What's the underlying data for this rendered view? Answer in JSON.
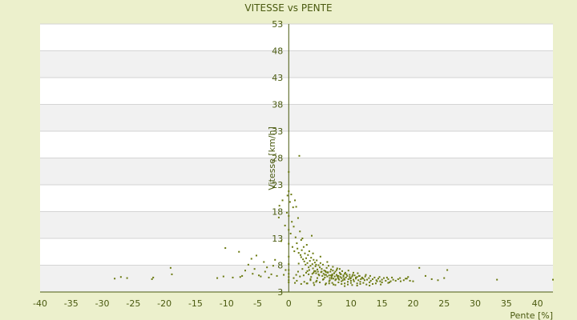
{
  "chart_data": {
    "type": "scatter",
    "title": "VITESSE vs PENTE",
    "xlabel": "Pente [%]",
    "ylabel": "Vitesse [km/h]",
    "xlim": [
      -40,
      42.5
    ],
    "ylim": [
      3,
      53
    ],
    "xticks": [
      -40,
      -35,
      -30,
      -25,
      -20,
      -15,
      -10,
      -5,
      0,
      5,
      10,
      15,
      20,
      25,
      30,
      35,
      40
    ],
    "yticks": [
      3,
      8,
      13,
      18,
      23,
      28,
      33,
      38,
      43,
      48,
      53
    ],
    "grid": "horizontal-bands",
    "legend": "none",
    "colors": {
      "background": "#ecf0cc",
      "plot_band_light": "#ffffff",
      "plot_band_dark": "#f1f1f1",
      "grid_line": "#d4d4d4",
      "axis": "#4a5a10",
      "text": "#4a5a10",
      "marker": "#6b7a10"
    },
    "series": [
      {
        "points": [
          [
            -28,
            5.5
          ],
          [
            -27,
            5.8
          ],
          [
            -26,
            5.6
          ],
          [
            -22,
            5.4
          ],
          [
            -21.8,
            5.7
          ],
          [
            -19,
            7.5
          ],
          [
            -18.8,
            6.3
          ],
          [
            -11.5,
            5.6
          ],
          [
            -10.5,
            5.9
          ],
          [
            -10.2,
            11.2
          ],
          [
            -9,
            5.7
          ],
          [
            -8,
            10.5
          ],
          [
            -7.8,
            5.8
          ],
          [
            -7.5,
            6.0
          ],
          [
            -7,
            7.0
          ],
          [
            -6.5,
            8.1
          ],
          [
            -6,
            9.2
          ],
          [
            -5.8,
            6.4
          ],
          [
            -5.5,
            7.3
          ],
          [
            -5.2,
            9.8
          ],
          [
            -4.8,
            6.1
          ],
          [
            -4.5,
            5.9
          ],
          [
            -4,
            8.6
          ],
          [
            -3.8,
            6.8
          ],
          [
            -3.5,
            7.6
          ],
          [
            -3.2,
            5.7
          ],
          [
            -2.8,
            6.3
          ],
          [
            -2.5,
            7.9
          ],
          [
            -2.2,
            9.0
          ],
          [
            -1.9,
            6.0
          ],
          [
            -1.6,
            16.9
          ],
          [
            -1.5,
            19.1
          ],
          [
            -1.2,
            12.5
          ],
          [
            -1.0,
            20.1
          ],
          [
            -0.8,
            6.2
          ],
          [
            -0.6,
            15.4
          ],
          [
            -0.5,
            7.1
          ],
          [
            -0.3,
            17.8
          ],
          [
            -0.2,
            21.0
          ],
          [
            0,
            25.4
          ],
          [
            0,
            21.8
          ],
          [
            0,
            17.2
          ],
          [
            0,
            14.6
          ],
          [
            0,
            12.0
          ],
          [
            0,
            9.6
          ],
          [
            0,
            8.2
          ],
          [
            0,
            7.1
          ],
          [
            0,
            6.4
          ],
          [
            0,
            5.8
          ],
          [
            0,
            5.2
          ],
          [
            0,
            4.8
          ],
          [
            0.2,
            19.8
          ],
          [
            0.3,
            13.9
          ],
          [
            0.4,
            21.2
          ],
          [
            0.5,
            16.1
          ],
          [
            0.6,
            11.4
          ],
          [
            0.7,
            18.8
          ],
          [
            0.8,
            15.2
          ],
          [
            0.9,
            10.6
          ],
          [
            1.0,
            20.1
          ],
          [
            1.1,
            13.2
          ],
          [
            1.2,
            18.9
          ],
          [
            1.3,
            12.1
          ],
          [
            1.4,
            11.1
          ],
          [
            1.5,
            16.8
          ],
          [
            1.6,
            10.3
          ],
          [
            1.7,
            28.4
          ],
          [
            1.8,
            14.3
          ],
          [
            1.9,
            9.9
          ],
          [
            2.0,
            12.7
          ],
          [
            2.1,
            10.8
          ],
          [
            2.2,
            13.0
          ],
          [
            2.3,
            9.1
          ],
          [
            2.4,
            11.4
          ],
          [
            2.5,
            8.7
          ],
          [
            2.6,
            10.2
          ],
          [
            2.8,
            9.3
          ],
          [
            2.9,
            11.8
          ],
          [
            3.0,
            8.4
          ],
          [
            3.1,
            9.9
          ],
          [
            3.2,
            7.6
          ],
          [
            3.3,
            10.6
          ],
          [
            3.4,
            8.8
          ],
          [
            3.5,
            7.9
          ],
          [
            3.6,
            9.4
          ],
          [
            3.7,
            13.5
          ],
          [
            3.8,
            8.2
          ],
          [
            3.9,
            7.4
          ],
          [
            4.0,
            9.0
          ],
          [
            4.1,
            6.9
          ],
          [
            4.2,
            8.5
          ],
          [
            4.3,
            7.8
          ],
          [
            4.4,
            6.5
          ],
          [
            4.5,
            8.9
          ],
          [
            4.6,
            7.2
          ],
          [
            4.7,
            6.8
          ],
          [
            4.8,
            8.0
          ],
          [
            4.9,
            6.1
          ],
          [
            5.0,
            7.6
          ],
          [
            5.1,
            9.6
          ],
          [
            5.2,
            6.7
          ],
          [
            5.3,
            7.3
          ],
          [
            5.4,
            6.0
          ],
          [
            5.5,
            8.1
          ],
          [
            5.6,
            6.4
          ],
          [
            5.7,
            7.0
          ],
          [
            5.8,
            5.7
          ],
          [
            5.9,
            6.9
          ],
          [
            6.0,
            6.2
          ],
          [
            6.1,
            7.5
          ],
          [
            6.2,
            5.9
          ],
          [
            6.3,
            6.6
          ],
          [
            6.4,
            7.9
          ],
          [
            6.5,
            6.1
          ],
          [
            6.6,
            5.6
          ],
          [
            6.7,
            6.8
          ],
          [
            6.8,
            7.2
          ],
          [
            6.9,
            5.8
          ],
          [
            7.0,
            6.3
          ],
          [
            7.1,
            7.0
          ],
          [
            7.2,
            5.5
          ],
          [
            7.3,
            6.5
          ],
          [
            7.4,
            5.9
          ],
          [
            7.5,
            6.8
          ],
          [
            7.6,
            5.4
          ],
          [
            7.7,
            6.2
          ],
          [
            7.8,
            7.4
          ],
          [
            7.9,
            5.7
          ],
          [
            8.0,
            6.0
          ],
          [
            8.1,
            5.3
          ],
          [
            8.2,
            6.6
          ],
          [
            8.3,
            5.8
          ],
          [
            8.4,
            6.3
          ],
          [
            8.5,
            5.6
          ],
          [
            8.6,
            6.9
          ],
          [
            8.7,
            5.2
          ],
          [
            8.8,
            6.1
          ],
          [
            8.9,
            5.5
          ],
          [
            9.0,
            6.4
          ],
          [
            9.2,
            5.7
          ],
          [
            9.4,
            6.0
          ],
          [
            9.6,
            5.4
          ],
          [
            9.8,
            6.2
          ],
          [
            10.0,
            5.6
          ],
          [
            10.2,
            5.9
          ],
          [
            10.4,
            5.3
          ],
          [
            10.6,
            6.1
          ],
          [
            10.8,
            5.5
          ],
          [
            11.0,
            5.8
          ],
          [
            11.2,
            5.2
          ],
          [
            11.4,
            6.0
          ],
          [
            11.6,
            5.4
          ],
          [
            11.8,
            5.7
          ],
          [
            12.0,
            5.5
          ],
          [
            12.3,
            5.9
          ],
          [
            12.6,
            5.3
          ],
          [
            12.9,
            5.6
          ],
          [
            13.2,
            5.1
          ],
          [
            13.5,
            5.4
          ],
          [
            13.8,
            5.7
          ],
          [
            14.1,
            5.2
          ],
          [
            14.4,
            5.5
          ],
          [
            14.7,
            5.0
          ],
          [
            15.0,
            5.3
          ],
          [
            15.3,
            5.6
          ],
          [
            15.6,
            5.1
          ],
          [
            16.0,
            5.4
          ],
          [
            16.4,
            5.0
          ],
          [
            16.8,
            5.3
          ],
          [
            17.2,
            5.1
          ],
          [
            17.6,
            5.4
          ],
          [
            18.0,
            5.0
          ],
          [
            18.5,
            5.2
          ],
          [
            19.0,
            5.5
          ],
          [
            19.5,
            5.1
          ],
          [
            2.0,
            4.5
          ],
          [
            2.5,
            4.9
          ],
          [
            3.0,
            4.6
          ],
          [
            3.5,
            5.2
          ],
          [
            4.0,
            4.7
          ],
          [
            4.5,
            5.1
          ],
          [
            5.0,
            4.8
          ],
          [
            5.5,
            5.3
          ],
          [
            6.0,
            4.6
          ],
          [
            6.5,
            5.0
          ],
          [
            7.0,
            4.7
          ],
          [
            7.5,
            5.2
          ],
          [
            8.0,
            4.8
          ],
          [
            8.5,
            5.0
          ],
          [
            9.0,
            4.6
          ],
          [
            9.5,
            4.9
          ],
          [
            10.0,
            4.7
          ],
          [
            10.5,
            5.0
          ],
          [
            11.0,
            4.6
          ],
          [
            11.5,
            4.9
          ],
          [
            12.0,
            4.7
          ],
          [
            13.0,
            4.8
          ],
          [
            14.0,
            4.6
          ],
          [
            15.0,
            4.8
          ],
          [
            16.0,
            4.7
          ],
          [
            1.5,
            6.8
          ],
          [
            2.2,
            7.3
          ],
          [
            2.8,
            6.6
          ],
          [
            3.3,
            7.1
          ],
          [
            3.8,
            6.4
          ],
          [
            4.3,
            6.9
          ],
          [
            4.8,
            6.3
          ],
          [
            5.3,
            6.8
          ],
          [
            5.8,
            6.2
          ],
          [
            6.3,
            6.7
          ],
          [
            6.8,
            6.1
          ],
          [
            7.3,
            6.5
          ],
          [
            7.8,
            6.0
          ],
          [
            8.3,
            6.4
          ],
          [
            8.8,
            5.9
          ],
          [
            9.3,
            6.3
          ],
          [
            9.8,
            5.8
          ],
          [
            10.3,
            6.2
          ],
          [
            10.8,
            5.7
          ],
          [
            11.3,
            6.0
          ],
          [
            11.8,
            5.6
          ],
          [
            1.2,
            6.2
          ],
          [
            1.8,
            5.9
          ],
          [
            2.4,
            6.1
          ],
          [
            3.6,
            5.8
          ],
          [
            4.6,
            5.6
          ],
          [
            5.6,
            5.4
          ],
          [
            6.6,
            5.2
          ],
          [
            3.0,
            6.9
          ],
          [
            4.0,
            6.6
          ],
          [
            6.0,
            6.7
          ],
          [
            7.0,
            6.1
          ],
          [
            8.0,
            5.5
          ],
          [
            9.0,
            5.3
          ],
          [
            10.0,
            5.1
          ],
          [
            8.5,
            4.5
          ],
          [
            9.5,
            4.4
          ],
          [
            11.5,
            4.5
          ],
          [
            12.5,
            4.4
          ],
          [
            13.5,
            4.5
          ],
          [
            10.2,
            4.3
          ],
          [
            7.2,
            4.4
          ],
          [
            4.1,
            4.3
          ],
          [
            5.9,
            4.4
          ],
          [
            2.9,
            4.6
          ],
          [
            6.9,
            5.5
          ],
          [
            9.9,
            5.5
          ],
          [
            12.2,
            5.2
          ],
          [
            14.2,
            5.0
          ],
          [
            3.5,
            5.4
          ],
          [
            4.4,
            4.9
          ],
          [
            1.0,
            4.7
          ],
          [
            1.3,
            5.1
          ],
          [
            0.8,
            5.6
          ],
          [
            1.6,
            8.3
          ],
          [
            2.0,
            9.5
          ],
          [
            2.7,
            8.1
          ],
          [
            3.2,
            6.3
          ],
          [
            3.9,
            10.2
          ],
          [
            4.4,
            8.1
          ],
          [
            5.1,
            8.4
          ],
          [
            6.2,
            8.6
          ],
          [
            7.1,
            7.7
          ],
          [
            7.7,
            7.1
          ],
          [
            8.2,
            7.3
          ],
          [
            9.1,
            6.6
          ],
          [
            9.6,
            7.0
          ],
          [
            10.4,
            6.6
          ],
          [
            11.1,
            6.5
          ],
          [
            12.4,
            6.2
          ],
          [
            13.1,
            6.0
          ],
          [
            14.6,
            5.8
          ],
          [
            15.8,
            5.7
          ],
          [
            16.6,
            5.7
          ],
          [
            17.9,
            5.6
          ],
          [
            18.8,
            5.5
          ],
          [
            19.2,
            5.8
          ],
          [
            21,
            7.5
          ],
          [
            22,
            6.0
          ],
          [
            23,
            5.4
          ],
          [
            24,
            5.2
          ],
          [
            25,
            5.6
          ],
          [
            25.5,
            7.1
          ],
          [
            33.5,
            5.3
          ],
          [
            42.5,
            5.3
          ],
          [
            20,
            5.0
          ],
          [
            16.2,
            4.8
          ],
          [
            14.8,
            4.4
          ],
          [
            13,
            4.2
          ],
          [
            11,
            4.2
          ],
          [
            9,
            4.1
          ],
          [
            7.5,
            4.3
          ],
          [
            6.5,
            4.6
          ]
        ]
      }
    ]
  }
}
